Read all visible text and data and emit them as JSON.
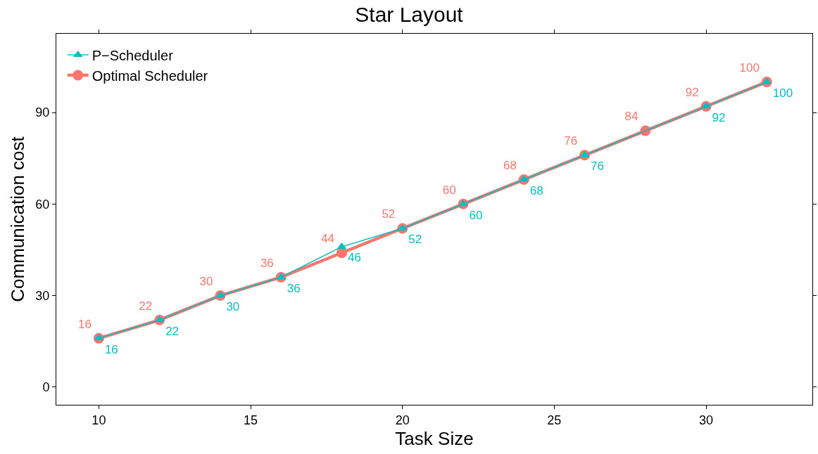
{
  "chart_data": {
    "type": "line",
    "title": "Star Layout",
    "xlabel": "Task Size",
    "ylabel": "Communication cost",
    "series": [
      {
        "name": "P−Scheduler",
        "color": "#00bfc4",
        "marker": "triangle",
        "x": [
          10,
          12,
          14,
          16,
          18,
          20,
          22,
          24,
          26,
          30,
          32
        ],
        "values": [
          16,
          22,
          30,
          36,
          46,
          52,
          60,
          68,
          76,
          92,
          100
        ]
      },
      {
        "name": "Optimal Scheduler",
        "color": "#f8766d",
        "marker": "circle",
        "x": [
          10,
          12,
          14,
          16,
          18,
          20,
          22,
          24,
          26,
          28,
          30,
          32
        ],
        "values": [
          16,
          22,
          30,
          36,
          44,
          52,
          60,
          68,
          76,
          84,
          92,
          100
        ]
      }
    ],
    "xlim": [
      8.6,
      33.5
    ],
    "xticks": [
      10,
      15,
      20,
      25,
      30
    ],
    "ylim": [
      -5.8,
      115.8
    ],
    "yticks": [
      0,
      30,
      60,
      90
    ],
    "data_labels": true,
    "legend": "top left",
    "line_style": "solid"
  }
}
